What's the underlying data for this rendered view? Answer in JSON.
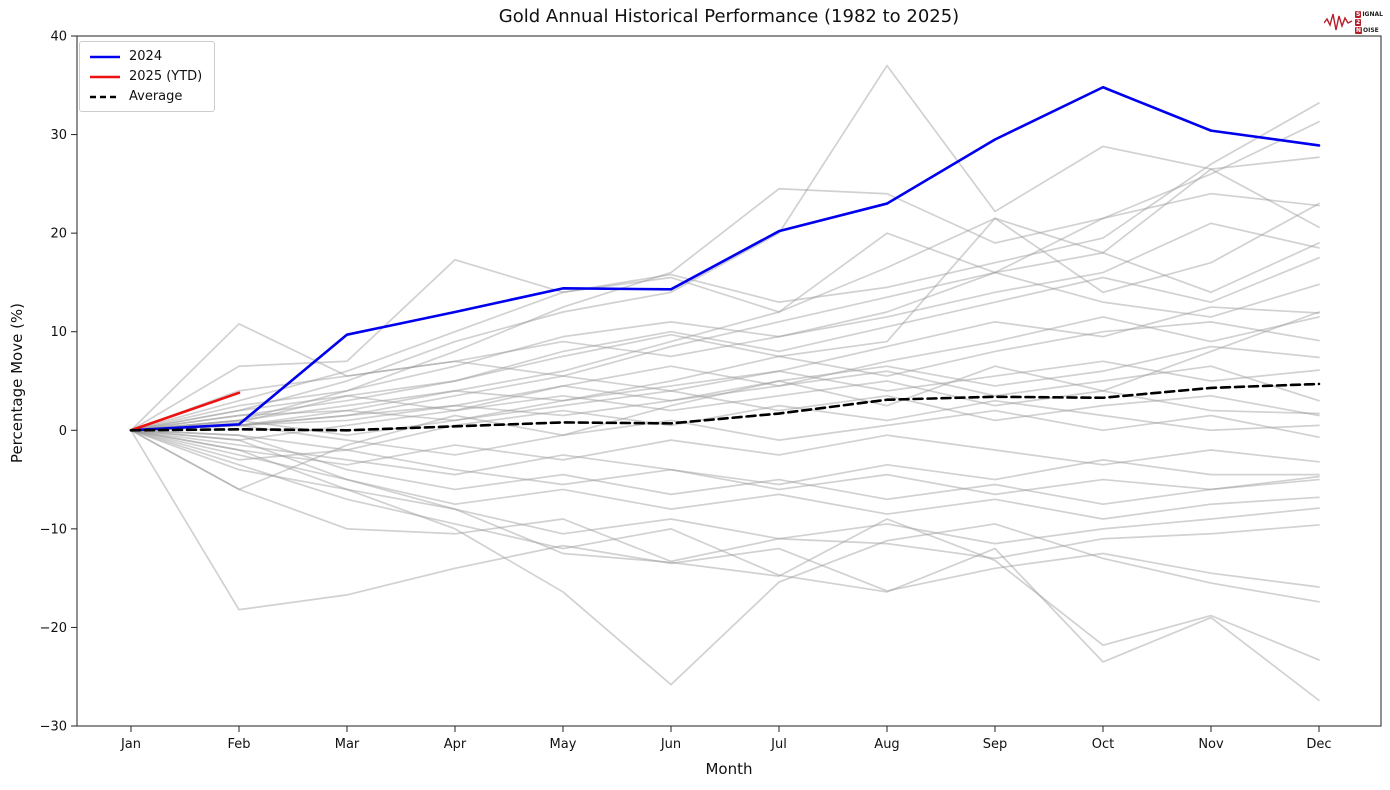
{
  "page": {
    "title": "Gold Annual Historical Performance (1982 to 2025)"
  },
  "logo": {
    "chip1": "S",
    "rest1": "IGNAL",
    "chip2": "2",
    "rest2": "",
    "chip3": "N",
    "rest3": "OISE",
    "accent_color": "#b51f2b"
  },
  "colors": {
    "line_2024": "#0000ee",
    "line_2025": "#ee1111",
    "line_average": "#000000",
    "historical_gray": "#999999",
    "axis": "#222222"
  },
  "chart_data": {
    "type": "line",
    "title": "Gold Annual Historical Performance (1982 to 2025)",
    "xlabel": "Month",
    "ylabel": "Percentage Move (%)",
    "x_categories": [
      "Jan",
      "Feb",
      "Mar",
      "Apr",
      "May",
      "Jun",
      "Jul",
      "Aug",
      "Sep",
      "Oct",
      "Nov",
      "Dec"
    ],
    "ylim": [
      -30,
      40
    ],
    "yticks": [
      -30,
      -20,
      -10,
      0,
      10,
      20,
      30,
      40
    ],
    "ytick_labels": [
      "−30",
      "−20",
      "−10",
      "0",
      "10",
      "20",
      "30",
      "40"
    ],
    "grid": false,
    "legend_position": "upper left",
    "historical_style": {
      "color": "#999999",
      "opacity": 0.45,
      "width": 1.7
    },
    "series": [
      {
        "name": "2024",
        "in_legend": true,
        "color": "#0000ee",
        "width": 2.6,
        "dash": null,
        "values": [
          0,
          0.6,
          9.7,
          12.0,
          14.4,
          14.3,
          20.2,
          23.0,
          29.5,
          34.8,
          30.4,
          28.9
        ]
      },
      {
        "name": "2025 (YTD)",
        "in_legend": true,
        "color": "#ee1111",
        "width": 2.6,
        "dash": null,
        "values": [
          0,
          3.8
        ]
      },
      {
        "name": "Average",
        "in_legend": true,
        "color": "#000000",
        "width": 2.6,
        "dash": "9 5",
        "values": [
          0,
          0.1,
          0.0,
          0.4,
          0.8,
          0.7,
          1.7,
          3.1,
          3.4,
          3.3,
          4.3,
          4.7
        ]
      },
      {
        "name": "hist-01",
        "values": [
          0,
          10.8,
          5.5,
          7.0,
          9.0,
          7.5,
          9.5,
          12.0,
          16.0,
          21.5,
          26.0,
          31.3
        ]
      },
      {
        "name": "hist-02",
        "values": [
          0,
          6.5,
          7.0,
          17.3,
          14.0,
          15.8,
          13.0,
          14.5,
          17.0,
          19.5,
          27.0,
          33.2
        ]
      },
      {
        "name": "hist-03",
        "values": [
          0,
          2.0,
          5.0,
          9.0,
          12.0,
          14.0,
          20.0,
          37.0,
          22.2,
          28.8,
          26.5,
          27.7
        ]
      },
      {
        "name": "hist-04",
        "values": [
          0,
          1.0,
          4.0,
          8.0,
          12.5,
          16.0,
          24.5,
          24.0,
          19.0,
          21.5,
          24.0,
          22.8
        ]
      },
      {
        "name": "hist-05",
        "values": [
          0,
          3.0,
          6.0,
          10.0,
          14.0,
          15.5,
          12.0,
          20.0,
          16.0,
          18.0,
          26.5,
          20.6
        ]
      },
      {
        "name": "hist-06",
        "values": [
          0,
          0.5,
          2.0,
          4.0,
          6.0,
          9.0,
          12.0,
          16.5,
          21.5,
          18.0,
          14.0,
          19.0
        ]
      },
      {
        "name": "hist-07",
        "values": [
          0,
          2.5,
          4.0,
          6.5,
          9.5,
          11.0,
          9.5,
          11.5,
          14.0,
          16.0,
          21.0,
          18.5
        ]
      },
      {
        "name": "hist-08",
        "values": [
          0,
          1.5,
          3.0,
          5.0,
          8.0,
          10.0,
          8.0,
          10.5,
          13.0,
          15.5,
          13.0,
          17.5
        ]
      },
      {
        "name": "hist-09",
        "values": [
          0,
          4.0,
          5.5,
          7.0,
          5.5,
          8.5,
          11.0,
          13.5,
          16.0,
          13.0,
          11.5,
          14.8
        ]
      },
      {
        "name": "hist-10",
        "values": [
          0,
          0.5,
          1.5,
          3.5,
          5.5,
          4.0,
          6.0,
          8.5,
          11.0,
          9.5,
          12.5,
          11.9
        ]
      },
      {
        "name": "hist-11",
        "values": [
          0,
          2.0,
          3.5,
          2.0,
          4.5,
          6.5,
          4.5,
          7.0,
          9.0,
          11.5,
          9.0,
          11.5
        ]
      },
      {
        "name": "hist-12",
        "values": [
          0,
          1.0,
          2.5,
          4.0,
          3.0,
          5.0,
          7.5,
          5.5,
          8.0,
          10.0,
          11.0,
          9.1
        ]
      },
      {
        "name": "hist-13",
        "values": [
          0,
          0.8,
          3.5,
          5.0,
          7.5,
          9.7,
          7.5,
          9.0,
          21.5,
          14.0,
          17.0,
          23.0
        ]
      },
      {
        "name": "hist-14",
        "values": [
          0,
          0.5,
          1.0,
          2.5,
          4.5,
          3.0,
          5.0,
          6.5,
          4.5,
          6.0,
          8.5,
          7.4
        ]
      },
      {
        "name": "hist-15",
        "values": [
          0,
          1.5,
          2.0,
          1.0,
          3.0,
          4.5,
          6.0,
          4.0,
          5.5,
          7.0,
          5.0,
          6.1
        ]
      },
      {
        "name": "hist-16",
        "values": [
          0,
          0.5,
          1.5,
          2.5,
          1.5,
          3.0,
          4.5,
          6.0,
          3.5,
          5.0,
          6.5,
          3.0
        ]
      },
      {
        "name": "hist-17",
        "values": [
          0,
          -1.0,
          0.5,
          2.0,
          3.5,
          2.0,
          3.5,
          5.0,
          2.5,
          4.0,
          2.0,
          1.7
        ]
      },
      {
        "name": "hist-18",
        "values": [
          0,
          1.0,
          -0.5,
          1.0,
          2.5,
          4.0,
          2.0,
          3.5,
          1.0,
          2.5,
          3.5,
          1.5
        ]
      },
      {
        "name": "hist-19",
        "values": [
          0,
          -0.5,
          -2.0,
          0.5,
          2.0,
          0.5,
          2.5,
          1.0,
          3.0,
          1.5,
          0.0,
          0.5
        ]
      },
      {
        "name": "hist-20",
        "values": [
          0,
          0.5,
          -1.0,
          -2.5,
          -0.5,
          1.0,
          -1.0,
          0.5,
          2.0,
          0.0,
          1.5,
          -0.7
        ]
      },
      {
        "name": "hist-21",
        "values": [
          0,
          -2.0,
          -3.5,
          -1.5,
          -3.0,
          -1.0,
          -2.5,
          -0.5,
          -2.0,
          -3.5,
          -2.0,
          -3.2
        ]
      },
      {
        "name": "hist-22",
        "values": [
          0,
          -1.5,
          -3.0,
          -4.5,
          -2.5,
          -4.0,
          -5.5,
          -3.5,
          -5.0,
          -3.0,
          -4.5,
          -4.5
        ]
      },
      {
        "name": "hist-23",
        "values": [
          0,
          -3.0,
          -2.0,
          -4.0,
          -5.5,
          -4.0,
          -6.0,
          -4.5,
          -6.5,
          -5.0,
          -6.0,
          -4.7
        ]
      },
      {
        "name": "hist-24",
        "values": [
          0,
          -0.5,
          -4.0,
          -6.0,
          -4.5,
          -6.5,
          -5.0,
          -7.0,
          -5.5,
          -7.5,
          -6.0,
          -5.0
        ]
      },
      {
        "name": "hist-25",
        "values": [
          0,
          -2.5,
          -5.0,
          -7.5,
          -6.0,
          -8.0,
          -6.5,
          -8.5,
          -7.0,
          -9.0,
          -7.5,
          -6.8
        ]
      },
      {
        "name": "hist-26",
        "values": [
          0,
          -4.0,
          -6.0,
          -8.0,
          -10.5,
          -9.0,
          -11.0,
          -9.5,
          -11.5,
          -10.0,
          -9.0,
          -7.9
        ]
      },
      {
        "name": "hist-27",
        "values": [
          0,
          -6.0,
          -10.0,
          -10.5,
          -9.0,
          -13.3,
          -11.0,
          -11.5,
          -13.0,
          -11.0,
          -10.5,
          -9.6
        ]
      },
      {
        "name": "hist-28",
        "values": [
          0,
          -18.2,
          -16.7,
          -14.0,
          -11.7,
          -13.5,
          -12.0,
          -16.3,
          -14.0,
          -12.5,
          -14.5,
          -15.9
        ]
      },
      {
        "name": "hist-29",
        "values": [
          0,
          -2.0,
          -6.0,
          -10.0,
          -16.4,
          -25.8,
          -15.4,
          -11.2,
          -9.5,
          -13.0,
          -15.5,
          -17.4
        ]
      },
      {
        "name": "hist-30",
        "values": [
          0,
          -1.0,
          -5.0,
          -8.0,
          -12.5,
          -13.4,
          -14.8,
          -9.0,
          -13.2,
          -21.8,
          -18.8,
          -23.3
        ]
      },
      {
        "name": "hist-31",
        "values": [
          0,
          -3.5,
          -7.0,
          -9.5,
          -12.0,
          -10.0,
          -14.7,
          -16.4,
          -12.0,
          -23.5,
          -19.0,
          -27.4
        ]
      },
      {
        "name": "hist-32",
        "values": [
          0,
          -6.0,
          -1.5,
          1.5,
          -0.5,
          2.5,
          5.0,
          2.5,
          6.5,
          4.0,
          8.0,
          12.0
        ]
      }
    ]
  }
}
